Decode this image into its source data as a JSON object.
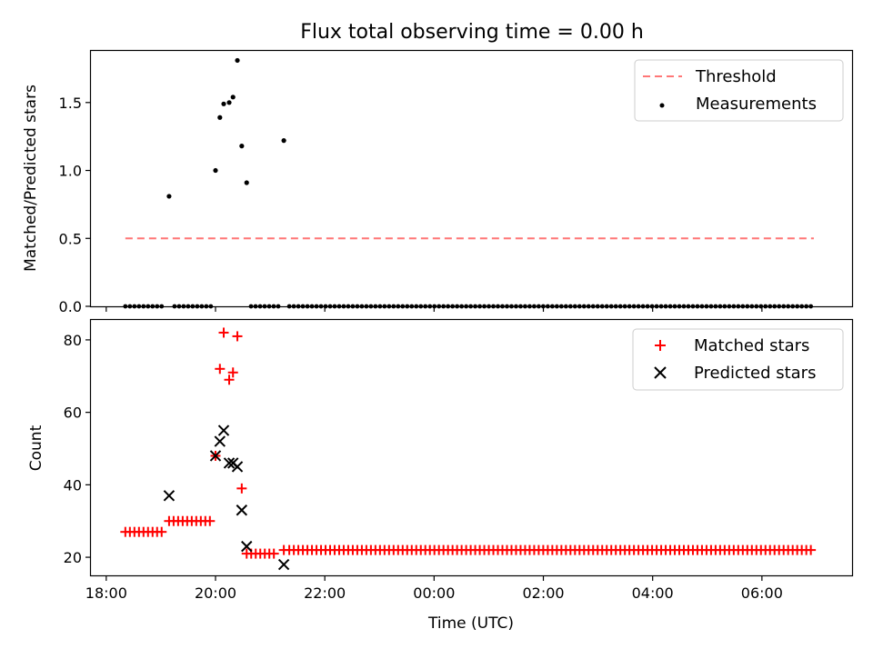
{
  "chart_data": {
    "title": "Flux total observing time = 0.00 h",
    "colors": {
      "threshold": "#ff7777",
      "measurements": "#000000",
      "matched": "#ff0000",
      "predicted": "#000000"
    },
    "x_axis": {
      "label": "Time (UTC)",
      "unit": "hours since 18:00",
      "range": [
        -0.28,
        13.65
      ],
      "ticks": [
        {
          "value": 0,
          "label": "18:00"
        },
        {
          "value": 2,
          "label": "20:00"
        },
        {
          "value": 4,
          "label": "22:00"
        },
        {
          "value": 6,
          "label": "00:00"
        },
        {
          "value": 8,
          "label": "02:00"
        },
        {
          "value": 10,
          "label": "04:00"
        },
        {
          "value": 12,
          "label": "06:00"
        }
      ]
    },
    "panels": [
      {
        "type": "scatter",
        "ylabel": "Matched/Predicted stars",
        "ylim": [
          0,
          1.88
        ],
        "yticks": [
          {
            "value": 0,
            "label": "0.0"
          },
          {
            "value": 0.5,
            "label": "0.5"
          },
          {
            "value": 1.0,
            "label": "1.0"
          },
          {
            "value": 1.5,
            "label": "1.5"
          }
        ],
        "legend": {
          "placement": "top-right",
          "entries": [
            {
              "label": "Threshold",
              "marker": "dashed-line"
            },
            {
              "label": "Measurements",
              "marker": "dot"
            }
          ]
        },
        "threshold": {
          "name": "Threshold",
          "value": 0.5,
          "x_range": [
            0.35,
            12.95
          ]
        },
        "measurements": {
          "name": "Measurements",
          "points": [
            [
              1.15,
              0.81
            ],
            [
              2.0,
              1.0
            ],
            [
              2.08,
              1.39
            ],
            [
              2.15,
              1.49
            ],
            [
              2.25,
              1.5
            ],
            [
              2.32,
              1.54
            ],
            [
              2.4,
              1.81
            ],
            [
              2.48,
              1.18
            ],
            [
              2.57,
              0.91
            ],
            [
              3.25,
              1.22
            ]
          ],
          "zero_ranges": [
            [
              0.35,
              1.05
            ],
            [
              1.25,
              1.95
            ],
            [
              2.65,
              3.15
            ],
            [
              3.35,
              12.95
            ]
          ],
          "zero_step": 0.083
        }
      },
      {
        "type": "scatter",
        "ylabel": "Count",
        "ylim": [
          15,
          85.5
        ],
        "yticks": [
          {
            "value": 20,
            "label": "20"
          },
          {
            "value": 40,
            "label": "40"
          },
          {
            "value": 60,
            "label": "60"
          },
          {
            "value": 80,
            "label": "80"
          }
        ],
        "legend": {
          "placement": "top-right",
          "entries": [
            {
              "label": "Matched stars",
              "marker": "plus"
            },
            {
              "label": "Predicted stars",
              "marker": "x"
            }
          ]
        },
        "matched": {
          "name": "Matched stars",
          "points": [
            [
              2.0,
              48
            ],
            [
              2.08,
              72
            ],
            [
              2.15,
              82
            ],
            [
              2.25,
              69
            ],
            [
              2.32,
              71
            ],
            [
              2.4,
              81
            ],
            [
              2.48,
              39
            ],
            [
              3.25,
              22
            ]
          ],
          "flat_segments": [
            {
              "range": [
                0.35,
                1.05
              ],
              "value": 27
            },
            {
              "range": [
                1.15,
                1.95
              ],
              "value": 30
            },
            {
              "range": [
                2.57,
                3.15
              ],
              "value": 21
            },
            {
              "range": [
                3.35,
                12.95
              ],
              "value": 22
            }
          ],
          "step": 0.083
        },
        "predicted": {
          "name": "Predicted stars",
          "points": [
            [
              1.15,
              37
            ],
            [
              2.0,
              48
            ],
            [
              2.08,
              52
            ],
            [
              2.15,
              55
            ],
            [
              2.25,
              46
            ],
            [
              2.32,
              46
            ],
            [
              2.4,
              45
            ],
            [
              2.48,
              33
            ],
            [
              2.57,
              23
            ],
            [
              3.25,
              18
            ]
          ]
        }
      }
    ]
  }
}
